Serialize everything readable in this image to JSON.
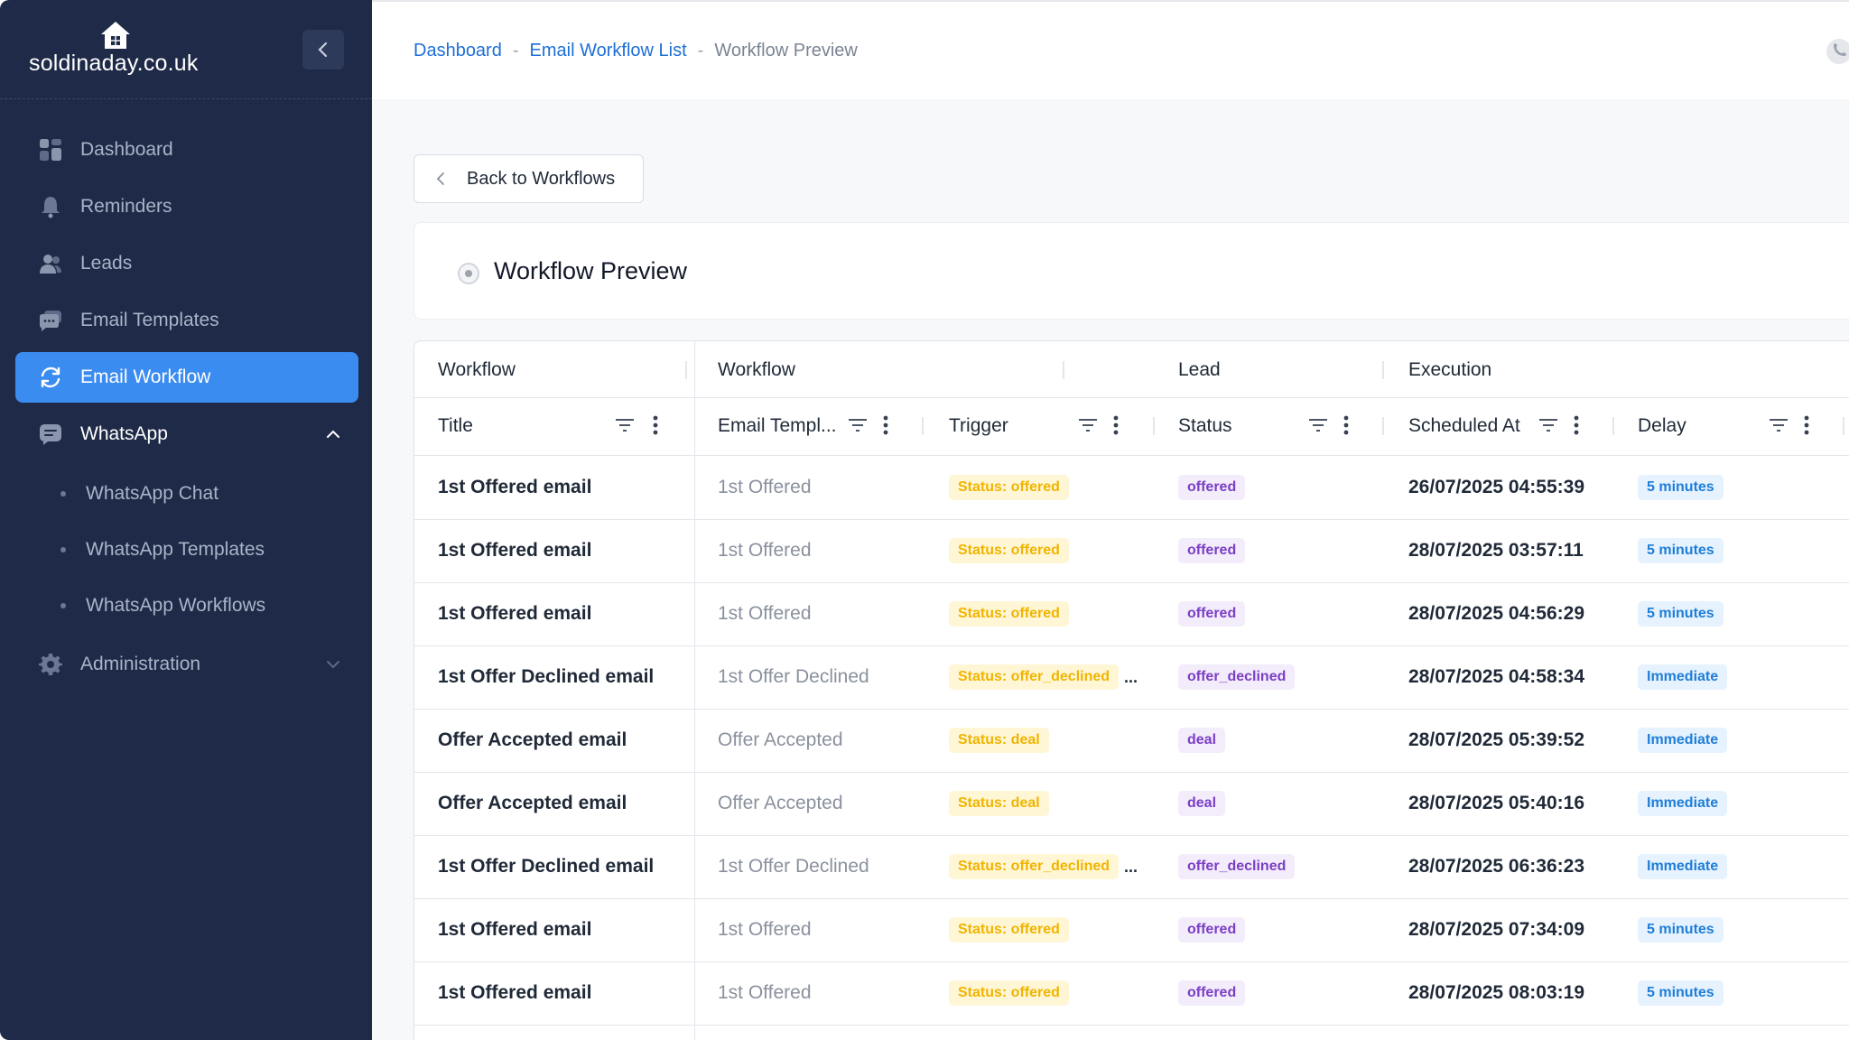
{
  "brand": {
    "name": "soldinaday.co.uk"
  },
  "sidebar": {
    "items": [
      {
        "label": "Dashboard",
        "icon": "dashboard-icon"
      },
      {
        "label": "Reminders",
        "icon": "bell-icon"
      },
      {
        "label": "Leads",
        "icon": "users-icon"
      },
      {
        "label": "Email Templates",
        "icon": "chat-icon"
      },
      {
        "label": "Email Workflow",
        "icon": "refresh-icon",
        "active": true
      },
      {
        "label": "WhatsApp",
        "icon": "message-icon",
        "expanded": true
      }
    ],
    "whatsapp_sub": [
      {
        "label": "WhatsApp Chat"
      },
      {
        "label": "WhatsApp Templates"
      },
      {
        "label": "WhatsApp Workflows"
      }
    ],
    "admin": {
      "label": "Administration",
      "icon": "gear-icon"
    }
  },
  "breadcrumb": {
    "items": [
      "Dashboard",
      "Email Workflow List",
      "Workflow Preview"
    ],
    "sep": "-"
  },
  "back_button": {
    "label": "Back to Workflows"
  },
  "card": {
    "title": "Workflow Preview"
  },
  "table": {
    "groups": [
      "Workflow",
      "Workflow",
      "Lead",
      "Execution"
    ],
    "columns": [
      "Title",
      "Email Templ...",
      "Trigger",
      "Status",
      "Scheduled At",
      "Delay"
    ],
    "rows": [
      {
        "title": "1st Offered email",
        "template": "1st Offered",
        "trigger": "Status: offered",
        "trigger_more": "",
        "status": "offered",
        "scheduled": "26/07/2025 04:55:39",
        "delay": "5 minutes"
      },
      {
        "title": "1st Offered email",
        "template": "1st Offered",
        "trigger": "Status: offered",
        "trigger_more": "",
        "status": "offered",
        "scheduled": "28/07/2025 03:57:11",
        "delay": "5 minutes"
      },
      {
        "title": "1st Offered email",
        "template": "1st Offered",
        "trigger": "Status: offered",
        "trigger_more": "",
        "status": "offered",
        "scheduled": "28/07/2025 04:56:29",
        "delay": "5 minutes"
      },
      {
        "title": "1st Offer Declined email",
        "template": "1st Offer Declined",
        "trigger": "Status: offer_declined",
        "trigger_more": "...",
        "status": "offer_declined",
        "scheduled": "28/07/2025 04:58:34",
        "delay": "Immediate"
      },
      {
        "title": "Offer Accepted email",
        "template": "Offer Accepted",
        "trigger": "Status: deal",
        "trigger_more": "",
        "status": "deal",
        "scheduled": "28/07/2025 05:39:52",
        "delay": "Immediate"
      },
      {
        "title": "Offer Accepted email",
        "template": "Offer Accepted",
        "trigger": "Status: deal",
        "trigger_more": "",
        "status": "deal",
        "scheduled": "28/07/2025 05:40:16",
        "delay": "Immediate"
      },
      {
        "title": "1st Offer Declined email",
        "template": "1st Offer Declined",
        "trigger": "Status: offer_declined",
        "trigger_more": "...",
        "status": "offer_declined",
        "scheduled": "28/07/2025 06:36:23",
        "delay": "Immediate"
      },
      {
        "title": "1st Offered email",
        "template": "1st Offered",
        "trigger": "Status: offered",
        "trigger_more": "",
        "status": "offered",
        "scheduled": "28/07/2025 07:34:09",
        "delay": "5 minutes"
      },
      {
        "title": "1st Offered email",
        "template": "1st Offered",
        "trigger": "Status: offered",
        "trigger_more": "",
        "status": "offered",
        "scheduled": "28/07/2025 08:03:19",
        "delay": "5 minutes"
      }
    ]
  },
  "colors": {
    "sidebar_bg": "#1e2a47",
    "accent": "#3b8cf0",
    "link": "#1d6fd6",
    "warning_text": "#f0b400",
    "warning_bg": "#fff6d6",
    "lead_text": "#7b3fc4",
    "lead_bg": "#f3ecfb",
    "info_text": "#1f7ed8",
    "info_bg": "#e6f2fd"
  }
}
